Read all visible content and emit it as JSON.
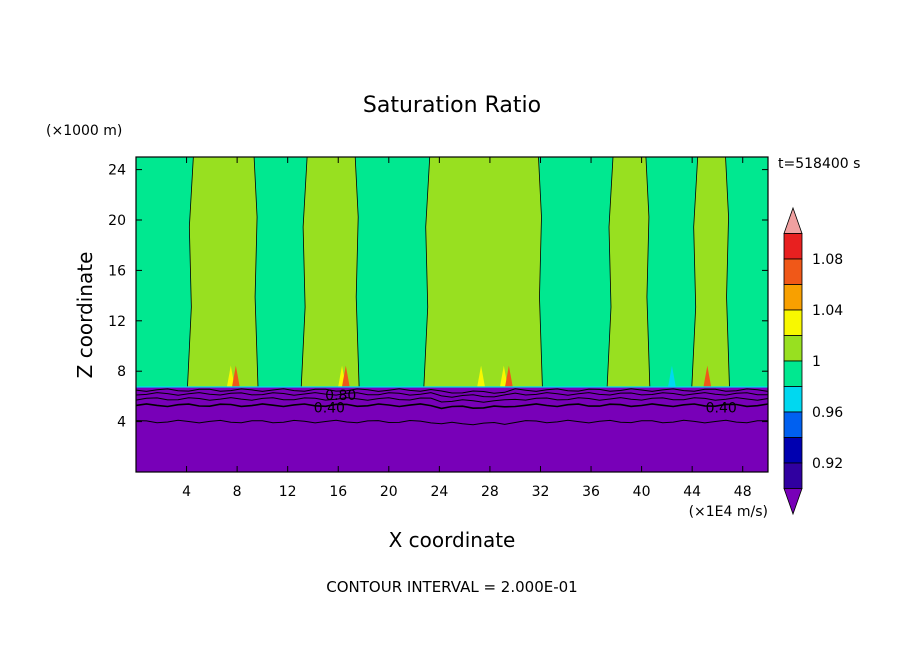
{
  "chart_data": {
    "type": "heatmap",
    "title": "Saturation Ratio",
    "xlabel": "X coordinate",
    "ylabel": "Z coordinate",
    "x_unit": "(×1E4 m/s)",
    "y_unit": "(×1000 m)",
    "time_label": "t=518400 s",
    "footer": "CONTOUR INTERVAL = 2.000E-01",
    "xlim": [
      0,
      50
    ],
    "ylim": [
      0,
      25
    ],
    "x_ticks": [
      4,
      8,
      12,
      16,
      20,
      24,
      28,
      32,
      36,
      40,
      44,
      48
    ],
    "y_ticks": [
      4,
      8,
      12,
      16,
      20,
      24
    ],
    "contour_labels": [
      "0.80",
      "0.40",
      "0.40"
    ],
    "colorbar": {
      "tick_labels": [
        "1.08",
        "1.04",
        "1",
        "0.96",
        "0.92"
      ],
      "levels": [
        {
          "from": 1.1,
          "to": 1.12,
          "color": "#f0a0a0"
        },
        {
          "from": 1.08,
          "to": 1.1,
          "color": "#e82020"
        },
        {
          "from": 1.06,
          "to": 1.08,
          "color": "#f05818"
        },
        {
          "from": 1.04,
          "to": 1.06,
          "color": "#f8a000"
        },
        {
          "from": 1.02,
          "to": 1.04,
          "color": "#f8f800"
        },
        {
          "from": 1.0,
          "to": 1.02,
          "color": "#98e020"
        },
        {
          "from": 0.98,
          "to": 1.0,
          "color": "#00e890"
        },
        {
          "from": 0.96,
          "to": 0.98,
          "color": "#00d8f0"
        },
        {
          "from": 0.94,
          "to": 0.96,
          "color": "#0060f0"
        },
        {
          "from": 0.92,
          "to": 0.94,
          "color": "#0000b0"
        },
        {
          "from": 0.9,
          "to": 0.92,
          "color": "#3000a0"
        },
        {
          "from": 0.88,
          "to": 0.9,
          "color": "#7800b8"
        }
      ]
    },
    "regions": [
      {
        "z_range": [
          0,
          6.7
        ],
        "value": "< 0.90",
        "color": "#7800b8"
      },
      {
        "z_range": [
          6.7,
          25
        ],
        "value": "0.98 - 1.02",
        "color_low": "#00e890",
        "color_high": "#98e020"
      }
    ],
    "bands_above_1": [
      {
        "x_range": [
          4.3,
          9.5
        ]
      },
      {
        "x_range": [
          13.3,
          17.5
        ]
      },
      {
        "x_range": [
          23.0,
          32.0
        ]
      },
      {
        "x_range": [
          37.5,
          40.5
        ]
      },
      {
        "x_range": [
          44.2,
          46.8
        ]
      }
    ]
  }
}
